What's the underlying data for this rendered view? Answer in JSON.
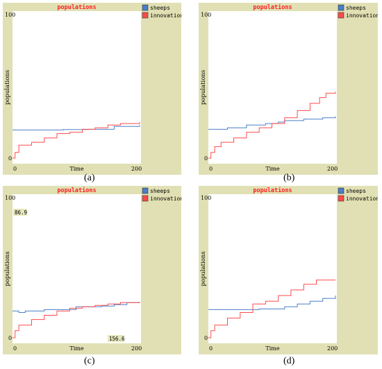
{
  "colors": {
    "frame_bg": "#e0e0b4",
    "plot_bg": "#ffffff",
    "sheeps": "#4a7ec8",
    "innovations": "#ff4a4a",
    "title": "#ff2020",
    "box_bg": "#e6e6bc"
  },
  "chart_data": [
    {
      "type": "line",
      "title": "populations",
      "xlabel": "Time",
      "ylabel": "populations",
      "xlim": [
        0,
        200
      ],
      "ylim": [
        0,
        100
      ],
      "x_tick_labels": [
        "0",
        "200"
      ],
      "y_tick_labels": [
        "0",
        "100"
      ],
      "legend": "right",
      "caption": "(a)",
      "series": [
        {
          "name": "sheeps",
          "color_key": "sheeps",
          "points": [
            [
              0,
              19.5
            ],
            [
              40,
              19.5
            ],
            [
              80,
              19.8
            ],
            [
              120,
              20
            ],
            [
              160,
              22
            ],
            [
              200,
              23
            ]
          ]
        },
        {
          "name": "innovations",
          "color_key": "innovations",
          "points": [
            [
              0,
              0
            ],
            [
              4,
              4
            ],
            [
              10,
              9
            ],
            [
              30,
              11
            ],
            [
              50,
              14
            ],
            [
              70,
              17
            ],
            [
              90,
              18
            ],
            [
              110,
              20
            ],
            [
              130,
              21
            ],
            [
              150,
              23
            ],
            [
              170,
              24
            ],
            [
              200,
              25
            ]
          ]
        }
      ]
    },
    {
      "type": "line",
      "title": "populations",
      "xlabel": "Time",
      "ylabel": "populations",
      "xlim": [
        0,
        200
      ],
      "ylim": [
        0,
        100
      ],
      "x_tick_labels": [
        "0",
        "200"
      ],
      "y_tick_labels": [
        "0",
        "100"
      ],
      "legend": "right",
      "caption": "(b)",
      "series": [
        {
          "name": "sheeps",
          "color_key": "sheeps",
          "points": [
            [
              0,
              20
            ],
            [
              30,
              21
            ],
            [
              60,
              23
            ],
            [
              90,
              24
            ],
            [
              110,
              25
            ],
            [
              120,
              26
            ],
            [
              150,
              27
            ],
            [
              180,
              28
            ],
            [
              200,
              29
            ]
          ]
        },
        {
          "name": "innovations",
          "color_key": "innovations",
          "points": [
            [
              0,
              0
            ],
            [
              4,
              4
            ],
            [
              10,
              8
            ],
            [
              20,
              11
            ],
            [
              40,
              14
            ],
            [
              60,
              18
            ],
            [
              80,
              21
            ],
            [
              100,
              24
            ],
            [
              120,
              28
            ],
            [
              140,
              33
            ],
            [
              160,
              38
            ],
            [
              175,
              42
            ],
            [
              185,
              45
            ],
            [
              200,
              46
            ]
          ]
        }
      ]
    },
    {
      "type": "line",
      "title": "populations",
      "xlabel": "Time",
      "ylabel": "populations",
      "xlim": [
        0,
        200
      ],
      "ylim": [
        0,
        100
      ],
      "x_tick_labels": [
        "0",
        "200"
      ],
      "y_tick_labels": [
        "0",
        "100"
      ],
      "legend": "right",
      "caption": "(c)",
      "annotations": [
        "86.9",
        "156.6"
      ],
      "series": [
        {
          "name": "sheeps",
          "color_key": "sheeps",
          "points": [
            [
              0,
              19
            ],
            [
              10,
              18
            ],
            [
              20,
              19
            ],
            [
              50,
              20
            ],
            [
              100,
              22
            ],
            [
              140,
              22.5
            ],
            [
              160,
              23.5
            ],
            [
              180,
              25
            ],
            [
              200,
              25.5
            ]
          ]
        },
        {
          "name": "innovations",
          "color_key": "innovations",
          "points": [
            [
              0,
              0
            ],
            [
              4,
              5
            ],
            [
              10,
              9
            ],
            [
              30,
              13
            ],
            [
              50,
              16
            ],
            [
              70,
              19
            ],
            [
              90,
              21
            ],
            [
              110,
              22
            ],
            [
              130,
              23
            ],
            [
              150,
              24
            ],
            [
              170,
              25
            ],
            [
              200,
              25.5
            ]
          ]
        }
      ]
    },
    {
      "type": "line",
      "title": "populations",
      "xlabel": "Time",
      "ylabel": "populations",
      "xlim": [
        0,
        200
      ],
      "ylim": [
        0,
        100
      ],
      "x_tick_labels": [
        "0",
        "200"
      ],
      "y_tick_labels": [
        "0",
        "100"
      ],
      "legend": "right",
      "caption": "(d)",
      "series": [
        {
          "name": "sheeps",
          "color_key": "sheeps",
          "points": [
            [
              0,
              20
            ],
            [
              40,
              20
            ],
            [
              80,
              20.5
            ],
            [
              120,
              22
            ],
            [
              140,
              24
            ],
            [
              160,
              26
            ],
            [
              180,
              28
            ],
            [
              200,
              30
            ]
          ]
        },
        {
          "name": "innovations",
          "color_key": "innovations",
          "points": [
            [
              0,
              0
            ],
            [
              4,
              5
            ],
            [
              10,
              9
            ],
            [
              30,
              14
            ],
            [
              50,
              18
            ],
            [
              70,
              24
            ],
            [
              90,
              26
            ],
            [
              110,
              30
            ],
            [
              130,
              34
            ],
            [
              150,
              38
            ],
            [
              170,
              41
            ],
            [
              200,
              41
            ]
          ]
        }
      ]
    }
  ]
}
